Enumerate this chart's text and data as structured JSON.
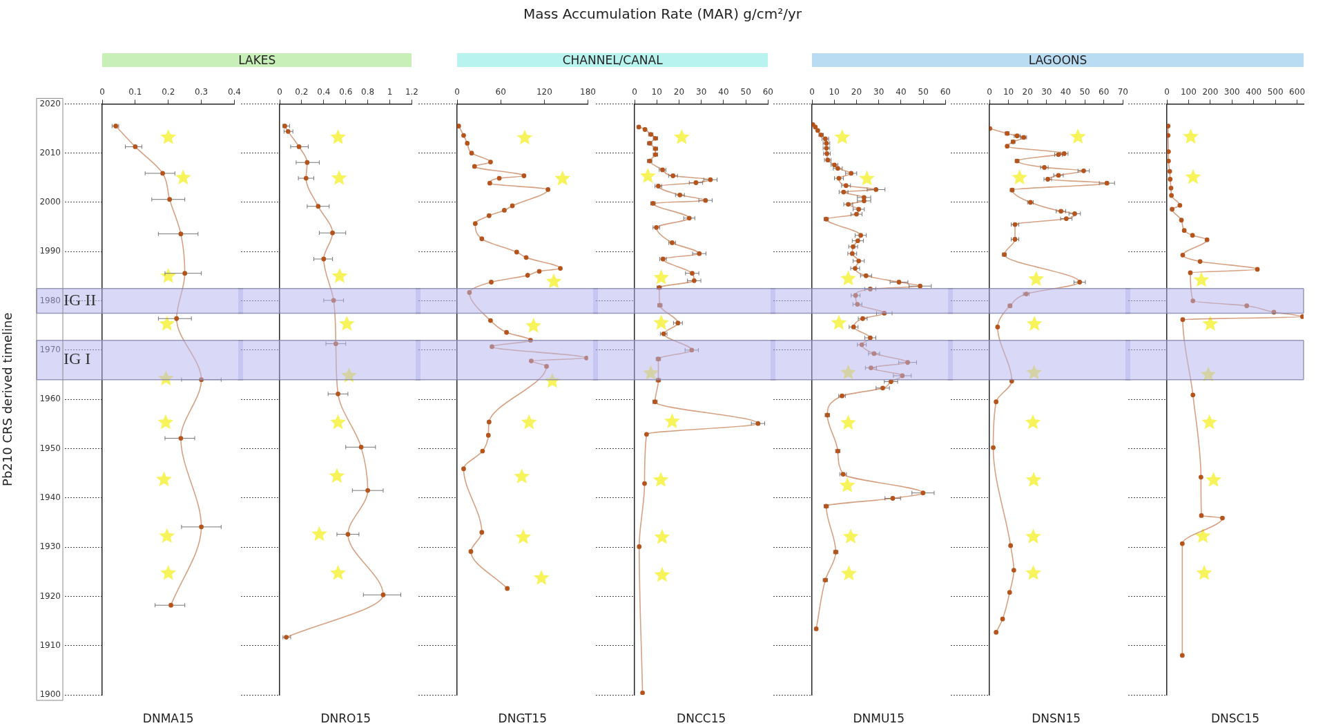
{
  "chart_data": [
    {
      "type": "other",
      "title": "Mass Accumulation Rate (MAR) g/cm²/yr"
    },
    {
      "type": "other",
      "title": "LAKES"
    },
    {
      "type": "other",
      "title": "CHANNEL/CANAL"
    },
    {
      "type": "other",
      "title": "LAGOONS"
    },
    {
      "type": "line",
      "xlabel": "DNMA15",
      "ylabel": "Pb210 CRS derived timeline",
      "xlim": [
        0,
        0.4
      ],
      "xticks": [
        0,
        0.1,
        0.2,
        0.3,
        0.4
      ],
      "ylim": [
        1900,
        2020
      ],
      "yticks": [
        1900,
        1910,
        1920,
        1930,
        1940,
        1950,
        1960,
        1970,
        1980,
        1990,
        2000,
        2010,
        2020
      ],
      "marker": "circle",
      "bands": [
        {
          "axis": "y",
          "from": 1977.5,
          "to": 1982.5,
          "label": "IG II",
          "color": "#b4b4f0"
        },
        {
          "axis": "y",
          "from": 1964,
          "to": 1972,
          "label": "IG I",
          "color": "#b4b4f0"
        }
      ],
      "series": [
        {
          "type": "scatter",
          "marker": "star",
          "color": "#f7f35a",
          "x": [
            0.2,
            0.245,
            0.2,
            0.196,
            0.193,
            0.192,
            0.187,
            0.196,
            0.2
          ],
          "values": [
            2013.2,
            2005,
            1985,
            1975.3,
            1964.2,
            1955.3,
            1943.7,
            1932.2,
            1924.7
          ]
        },
        {
          "color": "#b5541c",
          "x": [
            0.041,
            0.1,
            0.183,
            0.204,
            0.238,
            0.25,
            0.225,
            0.3,
            0.238,
            0.3,
            0.208
          ],
          "values": [
            2015.5,
            2011.3,
            2005.9,
            2000.6,
            1993.6,
            1985.6,
            1976.4,
            1964,
            1952.1,
            1934.1,
            1918.2
          ],
          "xerrors": [
            [
              0.03,
              0.05
            ],
            [
              0.07,
              0.12
            ],
            [
              0.13,
              0.22
            ],
            [
              0.15,
              0.25
            ],
            [
              0.17,
              0.29
            ],
            [
              0.19,
              0.3
            ],
            [
              0.17,
              0.27
            ],
            [
              0.24,
              0.36
            ],
            [
              0.19,
              0.28
            ],
            [
              0.24,
              0.36
            ],
            [
              0.16,
              0.25
            ]
          ]
        }
      ]
    },
    {
      "type": "line",
      "xlabel": "DNRO15",
      "xlim": [
        0,
        1.2
      ],
      "xticks": [
        0,
        0.2,
        0.4,
        0.6,
        0.8,
        1,
        1.2
      ],
      "ylim": [
        1900,
        2020
      ],
      "yticks": [
        1900,
        1910,
        1920,
        1930,
        1940,
        1950,
        1960,
        1970,
        1980,
        1990,
        2000,
        2010,
        2020
      ],
      "tick_labels": "x",
      "marker": "circle",
      "bands": [
        {
          "axis": "y",
          "from": 1977.5,
          "to": 1982.5,
          "color": "#b4b4f0"
        },
        {
          "axis": "y",
          "from": 1964,
          "to": 1972,
          "color": "#b4b4f0"
        }
      ],
      "series": [
        {
          "type": "scatter",
          "marker": "star",
          "color": "#f7f35a",
          "x": [
            0.53,
            0.54,
            0.545,
            0.61,
            0.63,
            0.53,
            0.52,
            0.36,
            0.53
          ],
          "values": [
            2013.2,
            2004.9,
            1985,
            1975.3,
            1964.8,
            1955.3,
            1944.4,
            1932.6,
            1924.7
          ]
        },
        {
          "color": "#b5541c",
          "x": [
            0.047,
            0.077,
            0.176,
            0.25,
            0.24,
            0.35,
            0.48,
            0.4,
            0.49,
            0.51,
            0.53,
            0.74,
            0.8,
            0.62,
            0.94,
            0.06
          ],
          "values": [
            2015.5,
            2014.4,
            2011.3,
            2008.1,
            2004.9,
            1999.2,
            1993.8,
            1988.5,
            1980.1,
            1971.3,
            1961.1,
            1950.3,
            1941.5,
            1932.6,
            1920.3,
            1911.7
          ],
          "xerrors": [
            [
              0.03,
              0.09
            ],
            [
              0.04,
              0.12
            ],
            [
              0.1,
              0.26
            ],
            [
              0.15,
              0.36
            ],
            [
              0.17,
              0.31
            ],
            [
              0.25,
              0.45
            ],
            [
              0.36,
              0.6
            ],
            [
              0.31,
              0.48
            ],
            [
              0.4,
              0.58
            ],
            [
              0.42,
              0.6
            ],
            [
              0.44,
              0.62
            ],
            [
              0.6,
              0.87
            ],
            [
              0.66,
              0.94
            ],
            [
              0.52,
              0.72
            ],
            [
              0.76,
              1.1
            ],
            [
              0.03,
              0.1
            ]
          ]
        }
      ]
    },
    {
      "type": "line",
      "xlabel": "DNGT15",
      "xlim": [
        0,
        180
      ],
      "xticks": [
        0,
        60,
        120,
        180
      ],
      "ylim": [
        1900,
        2020
      ],
      "yticks": [
        1900,
        1910,
        1920,
        1930,
        1940,
        1950,
        1960,
        1970,
        1980,
        1990,
        2000,
        2010,
        2020
      ],
      "tick_labels": "x",
      "marker": "circle",
      "bands": [
        {
          "axis": "y",
          "from": 1977.5,
          "to": 1982.5,
          "color": "#b4b4f0"
        },
        {
          "axis": "y",
          "from": 1964,
          "to": 1972,
          "color": "#b4b4f0"
        }
      ],
      "series": [
        {
          "type": "scatter",
          "marker": "star",
          "color": "#f7f35a",
          "x": [
            93,
            145,
            133,
            105,
            131,
            99,
            89,
            91,
            116
          ],
          "values": [
            2013.1,
            2004.8,
            1983.9,
            1974.9,
            1963.7,
            1955.3,
            1944.3,
            1932,
            1923.7
          ]
        },
        {
          "color": "#b5541c",
          "x": [
            2.2,
            9,
            14,
            20,
            46,
            24,
            92,
            58,
            45,
            125,
            76,
            65,
            44,
            25,
            34,
            82,
            95,
            142,
            113,
            97,
            47,
            17,
            46,
            68,
            101,
            48,
            178,
            102,
            123,
            44,
            43,
            35,
            9,
            34,
            19,
            69
          ],
          "values": [
            2015.5,
            2013.6,
            2012,
            2010,
            2008.2,
            2007.3,
            2005.4,
            2004.9,
            2003.9,
            2002.6,
            1999.3,
            1998.4,
            1997.3,
            1995.7,
            1992.6,
            1989.9,
            1988.8,
            1986.6,
            1986,
            1985.2,
            1983.8,
            1981.7,
            1976,
            1973.6,
            1972,
            1970.7,
            1968.4,
            1967.8,
            1966.7,
            1955.4,
            1952.7,
            1949.5,
            1945.9,
            1933,
            1929.1,
            1921.6
          ]
        }
      ]
    },
    {
      "type": "line",
      "xlabel": "DNCC15",
      "xlim": [
        0,
        60
      ],
      "xticks": [
        0,
        10,
        20,
        30,
        40,
        50,
        60
      ],
      "ylim": [
        1900,
        2020
      ],
      "yticks": [
        1900,
        1910,
        1920,
        1930,
        1940,
        1950,
        1960,
        1970,
        1980,
        1990,
        2000,
        2010,
        2020
      ],
      "tick_labels": "x",
      "marker": "circle",
      "bands": [
        {
          "axis": "y",
          "from": 1977.5,
          "to": 1982.5,
          "color": "#b4b4f0"
        },
        {
          "axis": "y",
          "from": 1964,
          "to": 1972,
          "color": "#b4b4f0"
        }
      ],
      "series": [
        {
          "type": "scatter",
          "marker": "star",
          "color": "#f7f35a",
          "x": [
            21.2,
            6,
            12,
            12,
            7.3,
            16.9,
            11.8,
            12.4,
            12.4
          ],
          "values": [
            2013.2,
            2005.3,
            1984.7,
            1975.5,
            1965.3,
            1955.5,
            1943.6,
            1932,
            1924.3
          ]
        },
        {
          "color": "#b5541c",
          "x": [
            1.9,
            4.7,
            7.3,
            9.4,
            6.8,
            9.4,
            9.4,
            6.8,
            12.6,
            17.3,
            34.1,
            27.6,
            10.7,
            20.4,
            31.9,
            8.3,
            24.6,
            9.8,
            16.9,
            29.1,
            12.8,
            25.9,
            26.8,
            11.1,
            11.4,
            19.5,
            13.1,
            25.7,
            10.7,
            10.7,
            9.2,
            55.5,
            5.4,
            4.5,
            2.1,
            3.6
          ],
          "values": [
            2015.3,
            2014.8,
            2013.8,
            2013,
            2012,
            2010.9,
            2009.7,
            2008.4,
            2006.6,
            2005.4,
            2004.6,
            2004,
            2003.3,
            2001.5,
            2000.4,
            1999.8,
            1996.8,
            1994.9,
            1991.8,
            1989.6,
            1988.5,
            1985.6,
            1984.1,
            1982.7,
            1979.1,
            1975.5,
            1973.3,
            1970,
            1968.2,
            1963.9,
            1959.5,
            1955.1,
            1952.9,
            1942.9,
            1930.1,
            1900.4
          ],
          "xerrors": [
            null,
            null,
            1,
            1,
            1,
            1,
            1,
            1,
            1.5,
            2,
            3,
            3,
            1.5,
            2,
            3,
            1,
            2.5,
            1.5,
            1.5,
            3,
            1.5,
            3,
            3,
            1,
            1,
            2,
            1.5,
            3,
            1,
            1,
            1,
            3,
            null,
            null,
            null,
            null
          ]
        }
      ]
    },
    {
      "type": "line",
      "xlabel": "DNMU15",
      "xlim": [
        0,
        60
      ],
      "xticks": [
        0,
        10,
        20,
        30,
        40,
        50,
        60
      ],
      "ylim": [
        1900,
        2020
      ],
      "yticks": [
        1900,
        1910,
        1920,
        1930,
        1940,
        1950,
        1960,
        1970,
        1980,
        1990,
        2000,
        2010,
        2020
      ],
      "tick_labels": "x",
      "marker": "circle",
      "bands": [
        {
          "axis": "y",
          "from": 1977.5,
          "to": 1982.5,
          "color": "#b4b4f0"
        },
        {
          "axis": "y",
          "from": 1964,
          "to": 1972,
          "color": "#b4b4f0"
        }
      ],
      "series": [
        {
          "type": "scatter",
          "marker": "star",
          "color": "#f7f35a",
          "x": [
            13.6,
            24.7,
            16.3,
            12.1,
            16.3,
            16.3,
            15.9,
            17.4,
            16.6
          ],
          "values": [
            2013.2,
            2004.8,
            1984.5,
            1975.5,
            1965.4,
            1955.2,
            1942.5,
            1932.1,
            1924.6
          ]
        },
        {
          "color": "#b5541c",
          "x": [
            0.4,
            1.5,
            2.6,
            4.1,
            6,
            6.5,
            6.5,
            6.7,
            7.1,
            10.1,
            11.6,
            17.6,
            12.1,
            15.3,
            28.8,
            14.2,
            23.4,
            23.4,
            16.3,
            21,
            20,
            6.4,
            21.9,
            20.6,
            18.5,
            18.1,
            21,
            19.4,
            24.3,
            39.1,
            48.6,
            26.2,
            19.6,
            20.4,
            32.5,
            22.8,
            18.7,
            26.2,
            22.4,
            27.9,
            43,
            26.5,
            40.6,
            35.5,
            31.8,
            13.5,
            6.9,
            11.6,
            14,
            49.9,
            36.3,
            6.4,
            10.7,
            6,
            1.9
          ],
          "values": [
            2015.8,
            2015.3,
            2014.6,
            2013.7,
            2012.9,
            2012,
            2011,
            2009.9,
            2008.6,
            2007.6,
            2006.9,
            2005.9,
            2004.9,
            2003.4,
            2002.6,
            2002.1,
            2001,
            2000.3,
            1999.6,
            1998.6,
            1997.6,
            1996.6,
            1993.3,
            1992.2,
            1991,
            1989.6,
            1988.1,
            1986.6,
            1985.1,
            1983.8,
            1983,
            1982.4,
            1981.1,
            1979.3,
            1977.5,
            1976.4,
            1974.7,
            1972.5,
            1971.1,
            1969.3,
            1967.5,
            1966.4,
            1964.8,
            1963.6,
            1962.3,
            1960.7,
            1956.8,
            1949.5,
            1944.8,
            1941,
            1939.9,
            1938.3,
            1929,
            1923.3,
            1913.4
          ],
          "xerrors": [
            null,
            null,
            null,
            1,
            1.5,
            1.5,
            1.5,
            1.5,
            1.5,
            1.5,
            2,
            2.5,
            2,
            2,
            4,
            2,
            3,
            3,
            2,
            2.5,
            2.5,
            1,
            2.5,
            2.5,
            2,
            2,
            2.5,
            2,
            2.5,
            4,
            5,
            2.5,
            2,
            2,
            3.5,
            2,
            2,
            2.5,
            2,
            2.5,
            4,
            2.5,
            4,
            3,
            3,
            1.5,
            1,
            1,
            1.5,
            5,
            3.5,
            1,
            1,
            1,
            null
          ]
        }
      ]
    },
    {
      "type": "line",
      "xlabel": "DNSN15",
      "xlim": [
        0,
        70
      ],
      "xticks": [
        0,
        10,
        20,
        30,
        40,
        50,
        60,
        70
      ],
      "ylim": [
        1900,
        2020
      ],
      "yticks": [
        1900,
        1910,
        1920,
        1930,
        1940,
        1950,
        1960,
        1970,
        1980,
        1990,
        2000,
        2010,
        2020
      ],
      "tick_labels": "x",
      "marker": "circle",
      "bands": [
        {
          "axis": "y",
          "from": 1977.5,
          "to": 1982.5,
          "color": "#b4b4f0"
        },
        {
          "axis": "y",
          "from": 1964,
          "to": 1972,
          "color": "#b4b4f0"
        }
      ],
      "series": [
        {
          "type": "scatter",
          "marker": "star",
          "color": "#f7f35a",
          "x": [
            46.4,
            15.8,
            24.5,
            23.6,
            23.4,
            22.8,
            23.2,
            23,
            23
          ],
          "values": [
            2013.3,
            2005,
            1984.4,
            1975.3,
            1965.4,
            1955.3,
            1943.6,
            1932.1,
            1924.7
          ]
        },
        {
          "color": "#b5541c",
          "x": [
            0.2,
            9.3,
            14.5,
            18,
            12.4,
            9.3,
            39.2,
            36.2,
            14.5,
            28.8,
            49.4,
            36.2,
            30.6,
            61.6,
            11.9,
            21.5,
            37.5,
            44.7,
            40.3,
            13.4,
            13.4,
            7.8,
            47.3,
            19.3,
            10.8,
            4.3,
            11.7,
            3.5,
            2,
            11.1,
            12.8,
            10.6,
            6.9,
            3.5
          ],
          "values": [
            2015,
            2014,
            2013.5,
            2013.2,
            2012.3,
            2011.4,
            2009.9,
            2009.7,
            2008.4,
            2007.1,
            2006.4,
            2005.5,
            2004.7,
            2003.9,
            2002.5,
            2000,
            1998.2,
            1997.7,
            1996.7,
            1995.5,
            1992.5,
            1989.4,
            1983.8,
            1981.4,
            1979,
            1974.7,
            1963.7,
            1959.5,
            1950.2,
            1930.3,
            1925.3,
            1920.8,
            1915.4,
            1912.7
          ],
          "xerrors": [
            null,
            1,
            1.5,
            1.5,
            1,
            null,
            2,
            2,
            1,
            2,
            3,
            2.5,
            2,
            4,
            1,
            1.5,
            2.5,
            3,
            3,
            2,
            2,
            1,
            3,
            1.5,
            1,
            null,
            null,
            null,
            null,
            null,
            null,
            null,
            null,
            null
          ]
        }
      ]
    },
    {
      "type": "line",
      "xlabel": "DNSC15",
      "xlim": [
        0,
        630
      ],
      "xticks": [
        0,
        100,
        200,
        300,
        400,
        500,
        600
      ],
      "ylim": [
        1900,
        2020
      ],
      "yticks": [
        1900,
        1910,
        1920,
        1930,
        1940,
        1950,
        1960,
        1970,
        1980,
        1990,
        2000,
        2010,
        2020
      ],
      "tick_labels": "x",
      "marker": "circle",
      "bands": [
        {
          "axis": "y",
          "from": 1977.5,
          "to": 1982.5,
          "color": "#b4b4f0"
        },
        {
          "axis": "y",
          "from": 1964,
          "to": 1972,
          "color": "#b4b4f0"
        }
      ],
      "series": [
        {
          "type": "scatter",
          "marker": "star",
          "color": "#f7f35a",
          "x": [
            110,
            121,
            159,
            200,
            191,
            196,
            215,
            166,
            172
          ],
          "values": [
            2013.3,
            2005.1,
            1984.2,
            1975.3,
            1965,
            1955.3,
            1943.6,
            1932.2,
            1924.7
          ]
        },
        {
          "color": "#b5541c",
          "x": [
            5.6,
            5.6,
            7.5,
            7.5,
            13,
            15,
            19,
            21,
            60,
            24,
            67,
            80,
            118,
            185,
            73,
            153,
            417,
            108,
            120,
            368,
            493,
            625,
            73,
            120,
            157,
            159,
            256,
            71,
            71
          ],
          "values": [
            2015.5,
            2013.6,
            2010.3,
            2008.4,
            2006.3,
            2004.7,
            2002.9,
            2001.4,
            1999.4,
            1998.6,
            1996.4,
            1994.3,
            1993.3,
            1992.4,
            1989.3,
            1988,
            1986.4,
            1985.7,
            1980,
            1979,
            1977.7,
            1976.8,
            1976.2,
            1960.9,
            1944.2,
            1936.4,
            1935.9,
            1930.7,
            1908
          ]
        }
      ]
    }
  ]
}
